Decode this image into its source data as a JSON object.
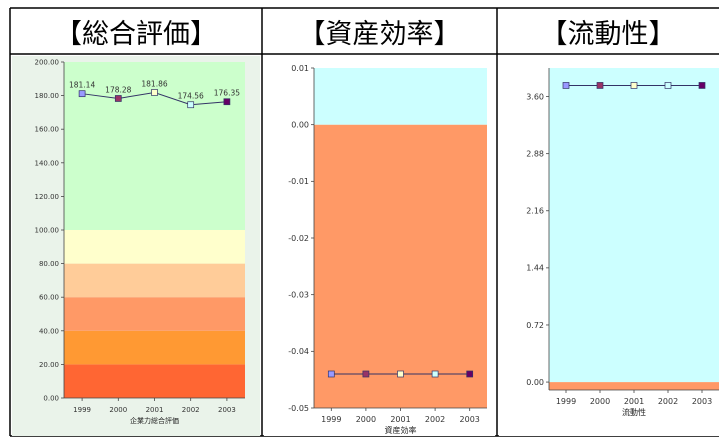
{
  "chart_data": [
    {
      "type": "line",
      "panel_title": "【総合評価】",
      "xlabel": "企業力総合評価",
      "ylabel": "",
      "x": [
        "1999",
        "2000",
        "2001",
        "2002",
        "2003"
      ],
      "series": [
        {
          "values": [
            181.14,
            178.28,
            181.86,
            174.56,
            176.35
          ]
        }
      ],
      "value_labels": [
        "181.14",
        "178.28",
        "181.86",
        "174.56",
        "176.35"
      ],
      "ylim": [
        0,
        200
      ],
      "yticks": [
        "0.00",
        "20.00",
        "40.00",
        "60.00",
        "80.00",
        "100.00",
        "120.00",
        "140.00",
        "160.00",
        "180.00",
        "200.00"
      ],
      "bands": [
        {
          "from": 0,
          "to": 20,
          "color": "#ff6633"
        },
        {
          "from": 20,
          "to": 40,
          "color": "#ff9933"
        },
        {
          "from": 40,
          "to": 60,
          "color": "#ff9966"
        },
        {
          "from": 60,
          "to": 80,
          "color": "#ffcc99"
        },
        {
          "from": 80,
          "to": 100,
          "color": "#ffffcc"
        },
        {
          "from": 100,
          "to": 200,
          "color": "#ccffcc"
        }
      ],
      "marker_colors": [
        "#9999ff",
        "#993366",
        "#ffffcc",
        "#ccffff",
        "#660066"
      ],
      "grid": false
    },
    {
      "type": "line",
      "panel_title": "【資産効率】",
      "xlabel": "資産効率",
      "ylabel": "",
      "x": [
        "1999",
        "2000",
        "2001",
        "2002",
        "2003"
      ],
      "series": [
        {
          "values": [
            -0.044,
            -0.044,
            -0.044,
            -0.044,
            -0.044
          ]
        }
      ],
      "ylim": [
        -0.05,
        0.01
      ],
      "yticks": [
        "-0.05",
        "-0.04",
        "-0.03",
        "-0.02",
        "-0.01",
        "0.00",
        "0.01"
      ],
      "bands": [
        {
          "from": -0.05,
          "to": 0,
          "color": "#ff9966"
        },
        {
          "from": 0,
          "to": 0.01,
          "color": "#ccffff"
        }
      ],
      "marker_colors": [
        "#9999ff",
        "#993366",
        "#ffffcc",
        "#ccffff",
        "#660066"
      ],
      "grid": false
    },
    {
      "type": "line",
      "panel_title": "【流動性】",
      "xlabel": "流動性",
      "ylabel": "",
      "x": [
        "1999",
        "2000",
        "2001",
        "2002",
        "2003"
      ],
      "series": [
        {
          "values": [
            3.74,
            3.74,
            3.74,
            3.74,
            3.74
          ]
        }
      ],
      "ylim": [
        -0.1,
        3.96
      ],
      "yticks": [
        "0.00",
        "0.72",
        "1.44",
        "2.16",
        "2.88",
        "3.60"
      ],
      "bands": [
        {
          "from": -0.1,
          "to": 0,
          "color": "#ff9966"
        },
        {
          "from": 0,
          "to": 3.96,
          "color": "#ccffff"
        }
      ],
      "marker_colors": [
        "#9999ff",
        "#993366",
        "#ffffcc",
        "#ccffff",
        "#660066"
      ],
      "grid": false
    }
  ]
}
